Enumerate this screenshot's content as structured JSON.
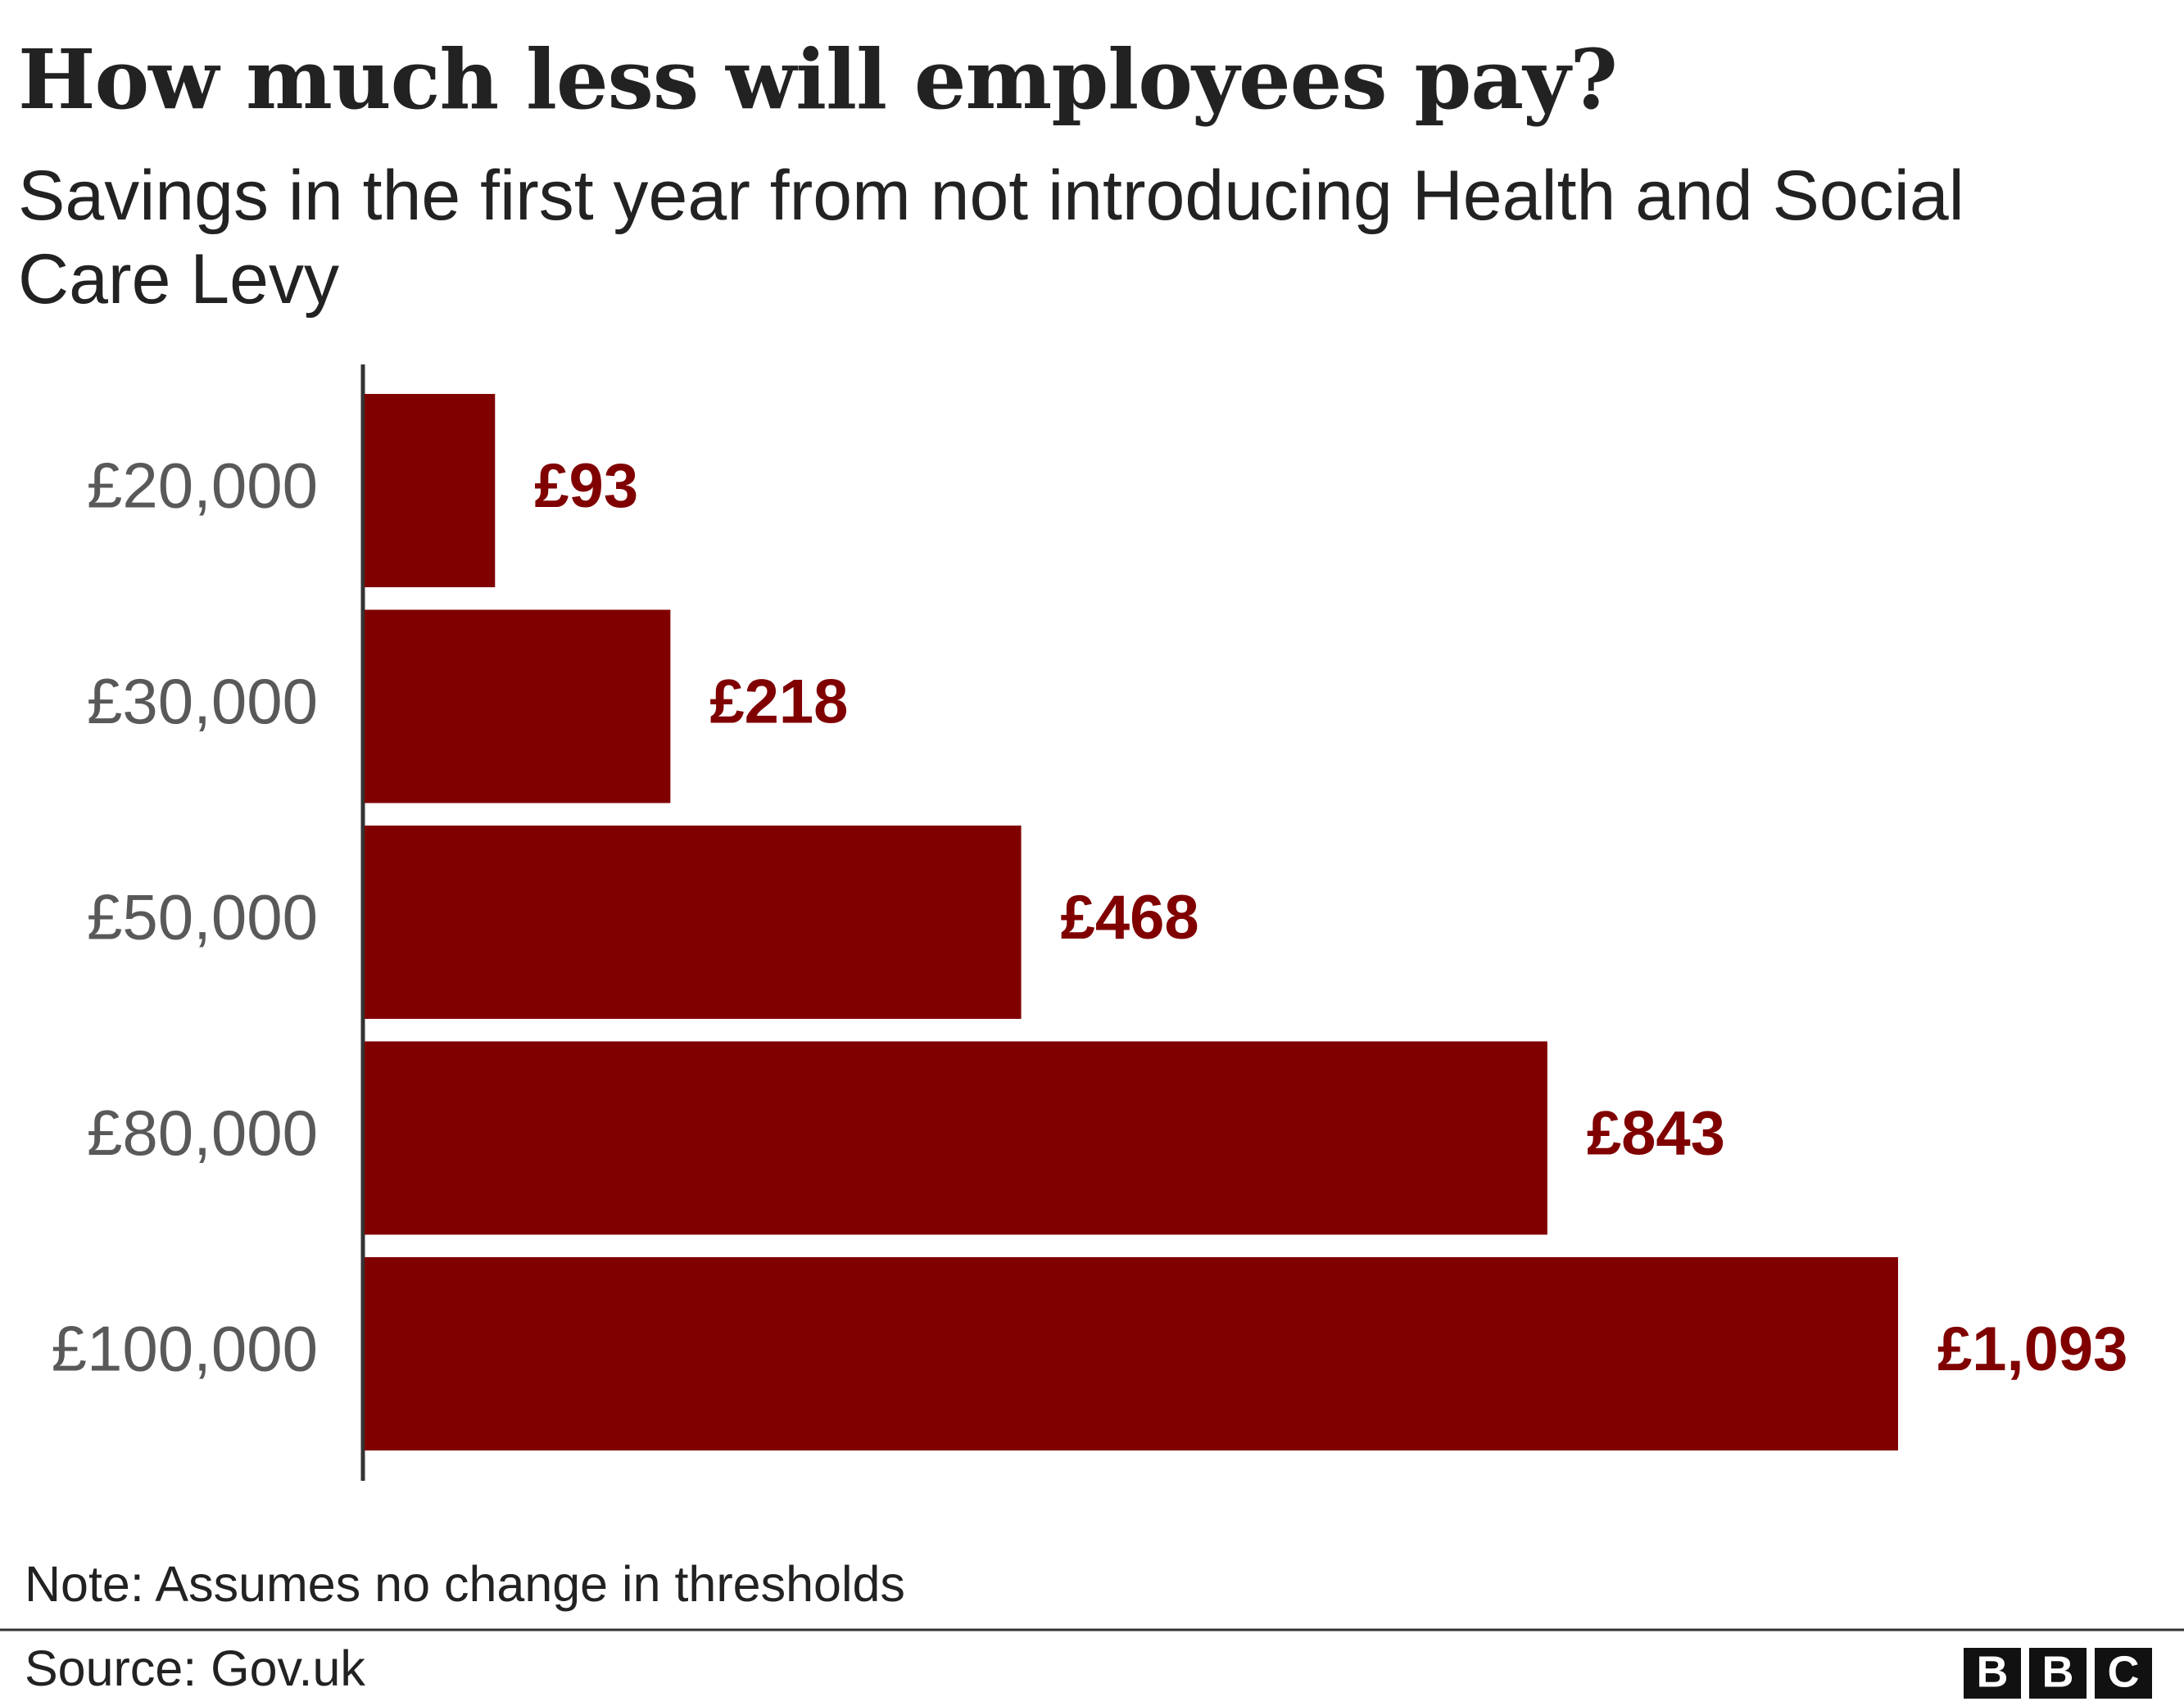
{
  "chart_data": {
    "type": "bar",
    "orientation": "horizontal",
    "title": "How much less will employees pay?",
    "subtitle": "Savings in the first year from not introducing Health and Social Care Levy",
    "categories": [
      "£20,000",
      "£30,000",
      "£50,000",
      "£80,000",
      "£100,000"
    ],
    "values": [
      93,
      218,
      468,
      843,
      1093
    ],
    "value_labels": [
      "£93",
      "£218",
      "£468",
      "£843",
      "£1,093"
    ],
    "color": "#800000",
    "note": "Note: Assumes no change in thresholds",
    "source": "Source: Gov.uk",
    "logo": [
      "B",
      "B",
      "C"
    ]
  }
}
